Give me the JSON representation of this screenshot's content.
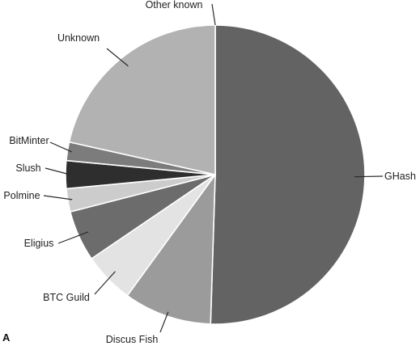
{
  "panel_label": "A",
  "chart_data": {
    "type": "pie",
    "title": "",
    "start_angle_deg": 0,
    "direction": "clockwise",
    "slices": [
      {
        "label": "GHash",
        "value": 50.5,
        "color": "#636363"
      },
      {
        "label": "Discus Fish",
        "value": 9.5,
        "color": "#9b9b9b"
      },
      {
        "label": "BTC Guild",
        "value": 5.5,
        "color": "#e3e3e3"
      },
      {
        "label": "Eligius",
        "value": 5.5,
        "color": "#6c6c6c"
      },
      {
        "label": "Polmine",
        "value": 2.5,
        "color": "#cccccc"
      },
      {
        "label": "Slush",
        "value": 3.0,
        "color": "#2e2e2e"
      },
      {
        "label": "BitMinter",
        "value": 2.0,
        "color": "#7c7c7c"
      },
      {
        "label": "Unknown",
        "value": 21.5,
        "color": "#b2b2b2"
      },
      {
        "label": "Other known",
        "value": 0.0,
        "color": "#9a9a9a"
      }
    ]
  }
}
